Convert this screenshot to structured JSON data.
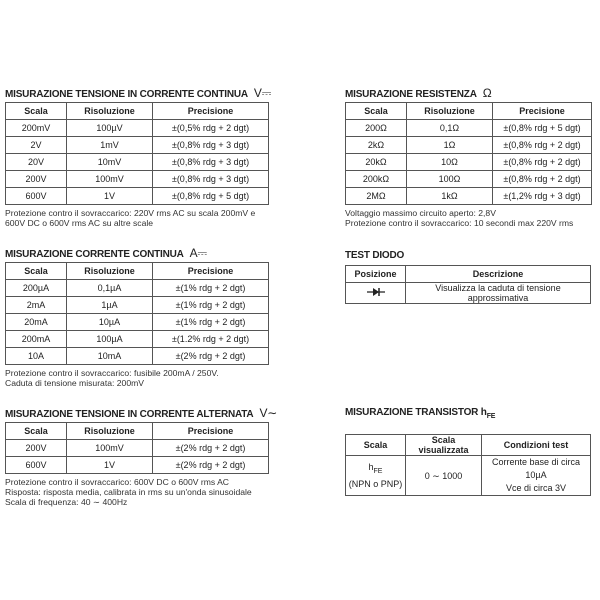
{
  "dc_voltage": {
    "title": "MISURAZIONE TENSIONE IN CORRENTE CONTINUA",
    "symbol": "V⎓",
    "headers": [
      "Scala",
      "Risoluzione",
      "Precisione"
    ],
    "rows": [
      [
        "200mV",
        "100µV",
        "±(0,5% rdg + 2 dgt)"
      ],
      [
        "2V",
        "1mV",
        "±(0,8% rdg + 3 dgt)"
      ],
      [
        "20V",
        "10mV",
        "±(0,8% rdg + 3 dgt)"
      ],
      [
        "200V",
        "100mV",
        "±(0,8% rdg + 3 dgt)"
      ],
      [
        "600V",
        "1V",
        "±(0,8% rdg + 5 dgt)"
      ]
    ],
    "notes": [
      "Protezione contro il sovraccarico: 220V rms AC su scala 200mV e",
      "600V DC o 600V rms AC su altre scale"
    ]
  },
  "dc_current": {
    "title": "MISURAZIONE CORRENTE CONTINUA",
    "symbol": "A⎓",
    "headers": [
      "Scala",
      "Risoluzione",
      "Precisione"
    ],
    "rows": [
      [
        "200µA",
        "0,1µA",
        "±(1% rdg + 2 dgt)"
      ],
      [
        "2mA",
        "1µA",
        "±(1% rdg + 2 dgt)"
      ],
      [
        "20mA",
        "10µA",
        "±(1% rdg + 2 dgt)"
      ],
      [
        "200mA",
        "100µA",
        "±(1.2% rdg + 2 dgt)"
      ],
      [
        "10A",
        "10mA",
        "±(2% rdg + 2 dgt)"
      ]
    ],
    "notes": [
      "Protezione contro il sovraccarico: fusibile 200mA / 250V.",
      "Caduta di tensione misurata: 200mV"
    ]
  },
  "ac_voltage": {
    "title": "MISURAZIONE TENSIONE IN CORRENTE ALTERNATA",
    "symbol": "V∼",
    "headers": [
      "Scala",
      "Risoluzione",
      "Precisione"
    ],
    "rows": [
      [
        "200V",
        "100mV",
        "±(2% rdg + 2 dgt)"
      ],
      [
        "600V",
        "1V",
        "±(2% rdg + 2 dgt)"
      ]
    ],
    "notes": [
      "Protezione contro il sovraccarico: 600V DC o 600V rms AC",
      "Risposta: risposta media, calibrata in rms su un'onda sinusoidale",
      "Scala di frequenza: 40 ∼ 400Hz"
    ]
  },
  "resistance": {
    "title": "MISURAZIONE RESISTENZA",
    "symbol": "Ω",
    "headers": [
      "Scala",
      "Risoluzione",
      "Precisione"
    ],
    "rows": [
      [
        "200Ω",
        "0,1Ω",
        "±(0,8% rdg + 5 dgt)"
      ],
      [
        "2kΩ",
        "1Ω",
        "±(0,8% rdg + 2 dgt)"
      ],
      [
        "20kΩ",
        "10Ω",
        "±(0,8% rdg + 2 dgt)"
      ],
      [
        "200kΩ",
        "100Ω",
        "±(0,8% rdg + 2 dgt)"
      ],
      [
        "2MΩ",
        "1kΩ",
        "±(1,2% rdg + 3 dgt)"
      ]
    ],
    "notes": [
      "Voltaggio massimo circuito aperto: 2,8V",
      "Protezione contro il sovraccarico: 10 secondi max 220V rms"
    ]
  },
  "diode": {
    "title": "TEST DIODO",
    "headers": [
      "Posizione",
      "Descrizione"
    ],
    "icon": "diode-icon",
    "description": "Visualizza la caduta di tensione approssimativa"
  },
  "transistor": {
    "title": "MISURAZIONE TRANSISTOR",
    "title_symbol": "h",
    "title_symbol_sub": "FE",
    "headers": [
      "Scala",
      "Scala visualizzata",
      "Condizioni test"
    ],
    "scale_symbol": "h",
    "scale_symbol_sub": "FE",
    "scale_note": "(NPN o PNP)",
    "range": "0 ∼ 1000",
    "conditions": [
      "Corrente base di circa 10µA",
      "Vce di circa 3V"
    ]
  }
}
